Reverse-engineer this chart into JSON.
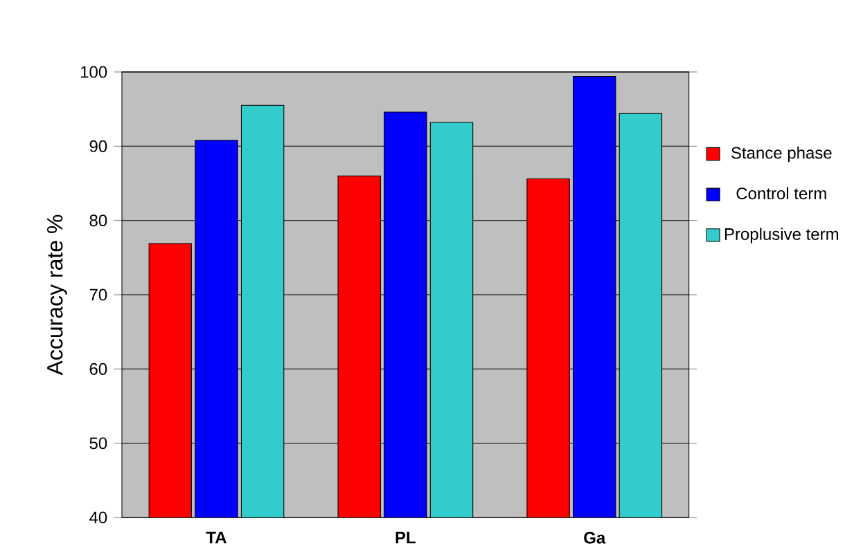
{
  "chart_data": {
    "type": "bar",
    "ylabel": "Accuracy rate  %",
    "categories": [
      "TA",
      "PL",
      "Ga"
    ],
    "series": [
      {
        "name": "Stance phase",
        "color": "#ff0000",
        "values": [
          76.9,
          86,
          85.6
        ]
      },
      {
        "name": "Control term",
        "color": "#0000ff",
        "values": [
          90.8,
          94.6,
          99.4
        ]
      },
      {
        "name": "Proplusive term",
        "color": "#33cccc",
        "values": [
          95.5,
          93.2,
          94.4
        ]
      }
    ],
    "ylim": [
      40,
      100
    ],
    "yticks": [
      40,
      50,
      60,
      70,
      80,
      90,
      100
    ],
    "grid": "y",
    "legend": "right"
  }
}
